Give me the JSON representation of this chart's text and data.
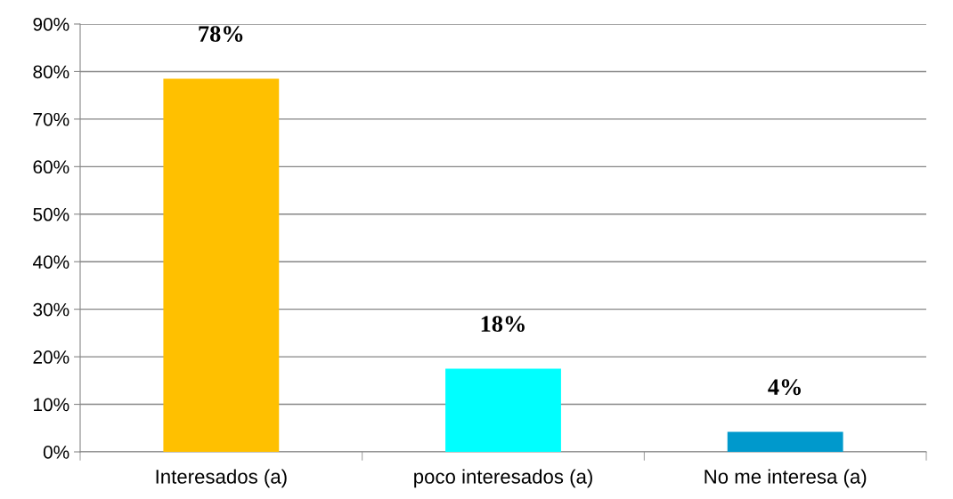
{
  "chart_data": {
    "type": "bar",
    "categories": [
      "Interesados (a)",
      "poco interesados (a)",
      "No me interesa (a)"
    ],
    "values": [
      78.5,
      17.5,
      4.2
    ],
    "colors": [
      "#ffc000",
      "#00ffff",
      "#0099cc"
    ],
    "value_labels": [
      "78%",
      "18%",
      "4%"
    ],
    "ylim": [
      0,
      90
    ],
    "yticks": [
      {
        "value": 0,
        "label": "0%"
      },
      {
        "value": 10,
        "label": "10%"
      },
      {
        "value": 20,
        "label": "20%"
      },
      {
        "value": 30,
        "label": "30%"
      },
      {
        "value": 40,
        "label": "40%"
      },
      {
        "value": 50,
        "label": "50%"
      },
      {
        "value": 60,
        "label": "60%"
      },
      {
        "value": 70,
        "label": "70%"
      },
      {
        "value": 80,
        "label": "80%"
      },
      {
        "value": 90,
        "label": "90%"
      }
    ],
    "grid": "y",
    "legend": false
  }
}
